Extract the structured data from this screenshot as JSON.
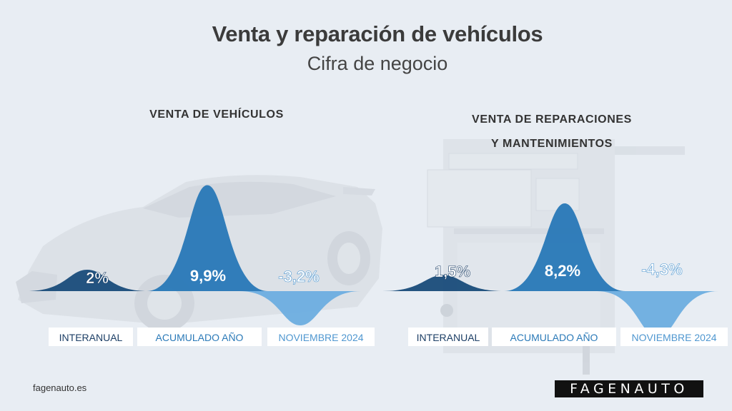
{
  "header": {
    "title": "Venta y reparación de vehículos",
    "subtitle": "Cifra de negocio"
  },
  "colors": {
    "interanual": "#1d4e7c",
    "acumulado": "#2b7ab8",
    "noviembre": "#6eaee0",
    "label_dark": "#1d3f66",
    "label_mid": "#2b7ab8",
    "label_light": "#4f97d0"
  },
  "chart_data": [
    {
      "type": "area",
      "title": "VENTA DE VEHÍCULOS",
      "categories": [
        "INTERANUAL",
        "ACUMULADO AÑO",
        "NOVIEMBRE 2024"
      ],
      "values": [
        2,
        9.9,
        -3.2
      ],
      "value_labels": [
        "2%",
        "9,9%",
        "-3,2%"
      ],
      "unit": "%"
    },
    {
      "type": "area",
      "title_lines": [
        "VENTA DE REPARACIONES",
        "Y MANTENIMIENTOS"
      ],
      "categories": [
        "INTERANUAL",
        "ACUMULADO AÑO",
        "NOVIEMBRE 2024"
      ],
      "values": [
        1.5,
        8.2,
        -4.3
      ],
      "value_labels": [
        "1,5%",
        "8,2%",
        "-4,3%"
      ],
      "unit": "%"
    }
  ],
  "footer": {
    "site": "fagenauto.es",
    "brand": "FAGENAUTO"
  }
}
